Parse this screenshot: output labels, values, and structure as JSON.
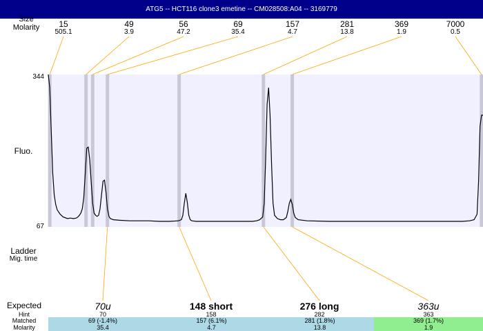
{
  "title": "ATG5 -- HCT116 clone3 emetine -- CM028508:A04 -- 3169779",
  "row_labels": {
    "size": "Size",
    "molarity_top": "Molarity",
    "fluo": "Fluo.",
    "ladder": "Ladder",
    "mig_time": "Mig. time",
    "expected": "Expected",
    "hint": "Hint",
    "matched": "Matched",
    "molarity_bottom": "Molarity"
  },
  "colors": {
    "title_bg": "#00008b",
    "plot_bg": "#f0f0ff",
    "marker_band": "#c8c8d8",
    "connector": "#ffa500",
    "matched_blue": "#add8e6",
    "matched_green": "#90ee90"
  },
  "chart_data": {
    "type": "line",
    "ylabel": "Fluo.",
    "ylim": [
      67,
      344
    ],
    "y_ticks": [
      "344",
      "67"
    ],
    "top_peaks": [
      {
        "size": "15",
        "molarity": "505.1"
      },
      {
        "size": "49",
        "molarity": "3.9"
      },
      {
        "size": "56",
        "molarity": "47.2"
      },
      {
        "size": "69",
        "molarity": "35.4"
      },
      {
        "size": "157",
        "molarity": "4.7"
      },
      {
        "size": "281",
        "molarity": "13.8"
      },
      {
        "size": "369",
        "molarity": "1.9"
      },
      {
        "size": "7000",
        "molarity": "0.5"
      }
    ],
    "expected": [
      {
        "label": "70u",
        "hint": "70",
        "matched": "69 (-1.4%)",
        "molarity": "35.4",
        "style": "italic"
      },
      {
        "label": "148 short",
        "hint": "158",
        "matched": "157 (6.1%)",
        "molarity": "4.7",
        "style": "bold"
      },
      {
        "label": "276 long",
        "hint": "282",
        "matched": "281 (1.8%)",
        "molarity": "13.8",
        "style": "bold"
      },
      {
        "label": "363u",
        "hint": "363",
        "matched": "369 (1.7%)",
        "molarity": "1.9",
        "style": "italic"
      }
    ],
    "trace": [
      [
        0,
        344
      ],
      [
        1,
        320
      ],
      [
        2,
        240
      ],
      [
        3,
        165
      ],
      [
        4,
        125
      ],
      [
        5,
        108
      ],
      [
        6,
        98
      ],
      [
        8,
        90
      ],
      [
        10,
        85
      ],
      [
        13,
        82
      ],
      [
        15,
        83
      ],
      [
        17,
        82
      ],
      [
        19,
        83
      ],
      [
        20,
        85
      ],
      [
        21,
        88
      ],
      [
        22,
        92
      ],
      [
        23,
        100
      ],
      [
        24,
        120
      ],
      [
        25,
        165
      ],
      [
        26,
        210
      ],
      [
        27,
        212
      ],
      [
        28,
        190
      ],
      [
        29,
        150
      ],
      [
        30,
        110
      ],
      [
        31,
        92
      ],
      [
        32,
        88
      ],
      [
        33,
        86
      ],
      [
        34,
        88
      ],
      [
        35,
        100
      ],
      [
        36,
        125
      ],
      [
        37,
        150
      ],
      [
        38,
        152
      ],
      [
        39,
        130
      ],
      [
        40,
        100
      ],
      [
        41,
        86
      ],
      [
        42,
        82
      ],
      [
        44,
        80
      ],
      [
        48,
        79
      ],
      [
        55,
        78
      ],
      [
        62,
        78
      ],
      [
        68,
        78
      ],
      [
        75,
        77
      ],
      [
        82,
        77
      ],
      [
        88,
        78
      ],
      [
        90,
        80
      ],
      [
        91,
        88
      ],
      [
        92,
        110
      ],
      [
        93,
        128
      ],
      [
        94,
        112
      ],
      [
        95,
        88
      ],
      [
        96,
        80
      ],
      [
        97,
        78
      ],
      [
        100,
        77
      ],
      [
        110,
        77
      ],
      [
        120,
        77
      ],
      [
        130,
        77
      ],
      [
        138,
        77
      ],
      [
        141,
        78
      ],
      [
        143,
        80
      ],
      [
        145,
        85
      ],
      [
        146,
        110
      ],
      [
        147,
        190
      ],
      [
        148,
        290
      ],
      [
        149,
        320
      ],
      [
        150,
        270
      ],
      [
        151,
        180
      ],
      [
        152,
        110
      ],
      [
        153,
        88
      ],
      [
        155,
        82
      ],
      [
        157,
        80
      ],
      [
        159,
        80
      ],
      [
        161,
        84
      ],
      [
        162,
        95
      ],
      [
        163,
        110
      ],
      [
        164,
        117
      ],
      [
        165,
        108
      ],
      [
        166,
        92
      ],
      [
        167,
        84
      ],
      [
        169,
        80
      ],
      [
        175,
        78
      ],
      [
        190,
        77
      ],
      [
        210,
        77
      ],
      [
        230,
        77
      ],
      [
        250,
        77
      ],
      [
        270,
        77
      ],
      [
        280,
        77
      ],
      [
        285,
        78
      ],
      [
        288,
        80
      ],
      [
        290,
        90
      ],
      [
        291,
        150
      ],
      [
        292,
        250
      ],
      [
        293,
        270
      ],
      [
        294,
        270
      ]
    ]
  }
}
